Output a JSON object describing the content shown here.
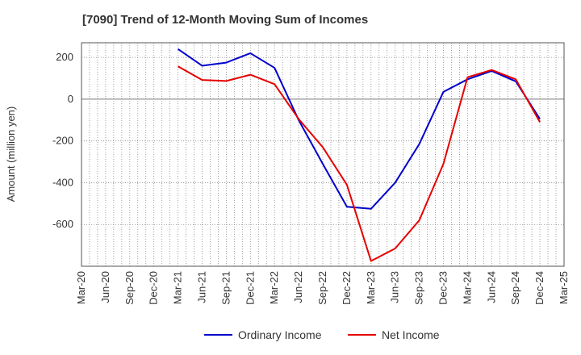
{
  "chart_data": {
    "type": "line",
    "title": "[7090]  Trend of 12-Month Moving Sum of Incomes",
    "ylabel": "Amount (million yen)",
    "xlabel": "",
    "x_ticks": [
      "Mar-20",
      "Jun-20",
      "Sep-20",
      "Dec-20",
      "Mar-21",
      "Jun-21",
      "Sep-21",
      "Dec-21",
      "Mar-22",
      "Jun-22",
      "Sep-22",
      "Dec-22",
      "Mar-23",
      "Jun-23",
      "Sep-23",
      "Dec-23",
      "Mar-24",
      "Jun-24",
      "Sep-24",
      "Dec-24",
      "Mar-25"
    ],
    "y_ticks": [
      200,
      0,
      -200,
      -400,
      -600
    ],
    "ylim": [
      -800,
      270
    ],
    "grid": true,
    "legend_position": "bottom",
    "x": [
      "Mar-21",
      "Jun-21",
      "Sep-21",
      "Dec-21",
      "Mar-22",
      "Jun-22",
      "Sep-22",
      "Dec-22",
      "Mar-23",
      "Jun-23",
      "Sep-23",
      "Dec-23",
      "Mar-24",
      "Jun-24",
      "Sep-24",
      "Dec-24"
    ],
    "series": [
      {
        "name": "Ordinary Income",
        "color": "#0000cc",
        "values": [
          240,
          160,
          175,
          220,
          150,
          -100,
          -310,
          -515,
          -525,
          -400,
          -215,
          35,
          95,
          135,
          85,
          -95
        ]
      },
      {
        "name": "Net Income",
        "color": "#e60000",
        "values": [
          157,
          92,
          87,
          117,
          72,
          -95,
          -230,
          -410,
          -775,
          -715,
          -580,
          -310,
          105,
          140,
          95,
          -110
        ]
      }
    ]
  }
}
